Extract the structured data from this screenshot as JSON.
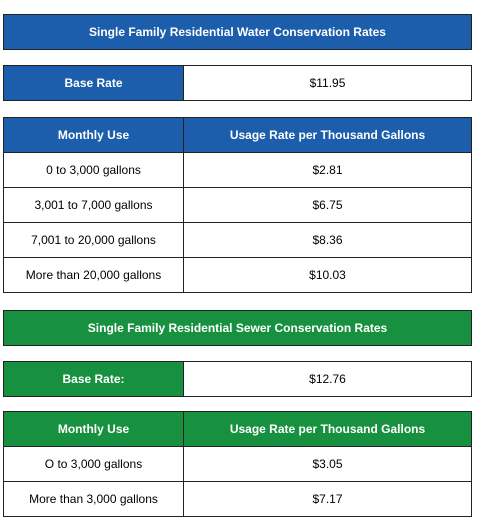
{
  "water": {
    "title": "Single Family Residential Water Conservation Rates",
    "base_rate": {
      "label": "Base Rate",
      "value": "$11.95"
    },
    "table": {
      "header": [
        "Monthly Use",
        "Usage Rate per Thousand Gallons"
      ],
      "rows": [
        [
          "0 to 3,000 gallons",
          "$2.81"
        ],
        [
          "3,001 to 7,000 gallons",
          "$6.75"
        ],
        [
          "7,001 to 20,000 gallons",
          "$8.36"
        ],
        [
          "More than 20,000 gallons",
          "$10.03"
        ]
      ]
    }
  },
  "sewer": {
    "title": "Single Family Residential Sewer Conservation Rates",
    "base_rate": {
      "label": "Base Rate:",
      "value": "$12.76"
    },
    "table": {
      "header": [
        "Monthly Use",
        "Usage Rate per Thousand Gallons"
      ],
      "rows": [
        [
          "O to 3,000 gallons",
          "$3.05"
        ],
        [
          "More than 3,000 gallons",
          "$7.17"
        ]
      ]
    }
  }
}
